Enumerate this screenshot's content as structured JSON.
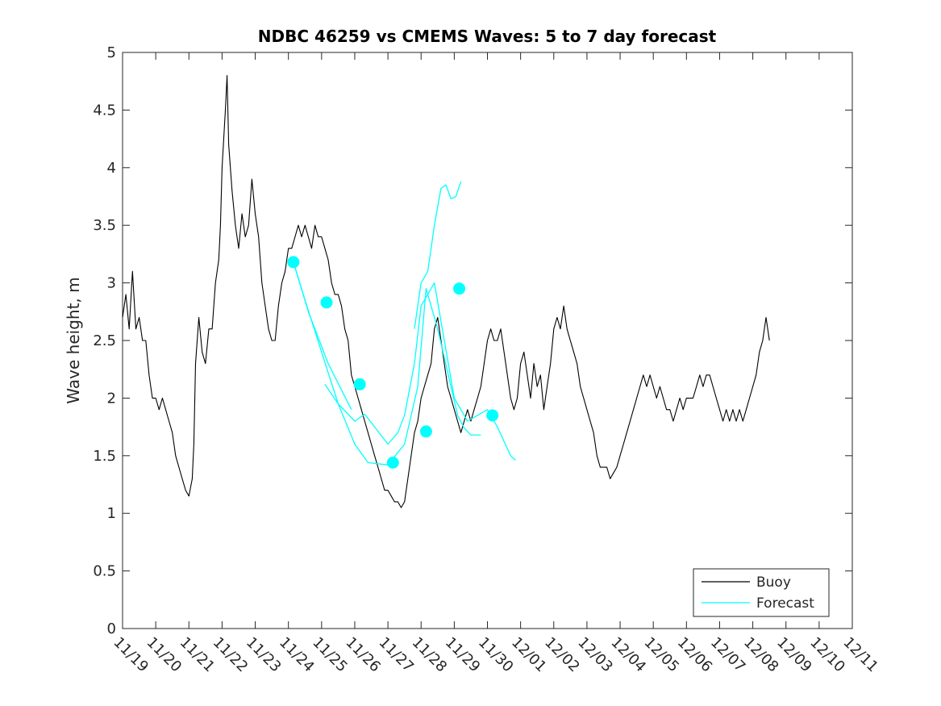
{
  "chart_data": {
    "type": "line",
    "title": "NDBC 46259 vs CMEMS Waves: 5 to 7 day forecast",
    "xlabel": "",
    "ylabel": "Wave height, m",
    "xlim": [
      "11/19",
      "12/11"
    ],
    "ylim": [
      0,
      5
    ],
    "x_tick_labels": [
      "11/19",
      "11/20",
      "11/21",
      "11/22",
      "11/23",
      "11/24",
      "11/25",
      "11/26",
      "11/27",
      "11/28",
      "11/29",
      "11/30",
      "12/01",
      "12/02",
      "12/03",
      "12/04",
      "12/05",
      "12/06",
      "12/07",
      "12/08",
      "12/09",
      "12/10",
      "12/11"
    ],
    "y_ticks": [
      0,
      0.5,
      1,
      1.5,
      2,
      2.5,
      3,
      3.5,
      4,
      4.5,
      5
    ],
    "y_tick_labels": [
      "0",
      "0.5",
      "1",
      "1.5",
      "2",
      "2.5",
      "3",
      "3.5",
      "4",
      "4.5",
      "5"
    ],
    "grid": false,
    "legend_position": "bottom-right",
    "legend": [
      "Buoy",
      "Forecast"
    ],
    "series": [
      {
        "name": "Buoy",
        "color": "#000000",
        "x_unit": "days after 11/19",
        "points": [
          [
            0.0,
            2.7
          ],
          [
            0.1,
            2.9
          ],
          [
            0.2,
            2.6
          ],
          [
            0.3,
            3.1
          ],
          [
            0.4,
            2.6
          ],
          [
            0.5,
            2.7
          ],
          [
            0.6,
            2.5
          ],
          [
            0.7,
            2.5
          ],
          [
            0.8,
            2.2
          ],
          [
            0.9,
            2.0
          ],
          [
            1.0,
            2.0
          ],
          [
            1.1,
            1.9
          ],
          [
            1.2,
            2.0
          ],
          [
            1.3,
            1.9
          ],
          [
            1.4,
            1.8
          ],
          [
            1.5,
            1.7
          ],
          [
            1.6,
            1.5
          ],
          [
            1.7,
            1.4
          ],
          [
            1.8,
            1.3
          ],
          [
            1.9,
            1.2
          ],
          [
            2.0,
            1.15
          ],
          [
            2.1,
            1.3
          ],
          [
            2.15,
            1.6
          ],
          [
            2.2,
            2.3
          ],
          [
            2.3,
            2.7
          ],
          [
            2.4,
            2.4
          ],
          [
            2.5,
            2.3
          ],
          [
            2.6,
            2.6
          ],
          [
            2.7,
            2.6
          ],
          [
            2.8,
            3.0
          ],
          [
            2.9,
            3.2
          ],
          [
            2.95,
            3.5
          ],
          [
            3.0,
            4.0
          ],
          [
            3.1,
            4.5
          ],
          [
            3.15,
            4.8
          ],
          [
            3.2,
            4.2
          ],
          [
            3.3,
            3.8
          ],
          [
            3.4,
            3.5
          ],
          [
            3.5,
            3.3
          ],
          [
            3.6,
            3.6
          ],
          [
            3.7,
            3.4
          ],
          [
            3.8,
            3.5
          ],
          [
            3.9,
            3.9
          ],
          [
            4.0,
            3.6
          ],
          [
            4.1,
            3.4
          ],
          [
            4.2,
            3.0
          ],
          [
            4.3,
            2.8
          ],
          [
            4.4,
            2.6
          ],
          [
            4.5,
            2.5
          ],
          [
            4.6,
            2.5
          ],
          [
            4.7,
            2.8
          ],
          [
            4.8,
            3.0
          ],
          [
            4.9,
            3.1
          ],
          [
            5.0,
            3.3
          ],
          [
            5.1,
            3.3
          ],
          [
            5.2,
            3.4
          ],
          [
            5.3,
            3.5
          ],
          [
            5.4,
            3.4
          ],
          [
            5.5,
            3.5
          ],
          [
            5.6,
            3.4
          ],
          [
            5.7,
            3.3
          ],
          [
            5.8,
            3.5
          ],
          [
            5.9,
            3.4
          ],
          [
            6.0,
            3.4
          ],
          [
            6.1,
            3.3
          ],
          [
            6.2,
            3.2
          ],
          [
            6.3,
            3.0
          ],
          [
            6.4,
            2.9
          ],
          [
            6.5,
            2.9
          ],
          [
            6.6,
            2.8
          ],
          [
            6.7,
            2.6
          ],
          [
            6.8,
            2.5
          ],
          [
            6.9,
            2.2
          ],
          [
            7.0,
            2.1
          ],
          [
            7.1,
            2.0
          ],
          [
            7.2,
            1.9
          ],
          [
            7.3,
            1.8
          ],
          [
            7.4,
            1.7
          ],
          [
            7.5,
            1.6
          ],
          [
            7.6,
            1.5
          ],
          [
            7.7,
            1.4
          ],
          [
            7.8,
            1.3
          ],
          [
            7.9,
            1.2
          ],
          [
            8.0,
            1.2
          ],
          [
            8.1,
            1.15
          ],
          [
            8.2,
            1.1
          ],
          [
            8.3,
            1.1
          ],
          [
            8.4,
            1.05
          ],
          [
            8.5,
            1.1
          ],
          [
            8.6,
            1.3
          ],
          [
            8.7,
            1.5
          ],
          [
            8.8,
            1.7
          ],
          [
            8.9,
            1.8
          ],
          [
            9.0,
            2.0
          ],
          [
            9.1,
            2.1
          ],
          [
            9.2,
            2.2
          ],
          [
            9.3,
            2.3
          ],
          [
            9.4,
            2.6
          ],
          [
            9.5,
            2.7
          ],
          [
            9.6,
            2.5
          ],
          [
            9.7,
            2.3
          ],
          [
            9.8,
            2.1
          ],
          [
            9.9,
            2.0
          ],
          [
            10.0,
            1.9
          ],
          [
            10.1,
            1.8
          ],
          [
            10.2,
            1.7
          ],
          [
            10.3,
            1.8
          ],
          [
            10.4,
            1.9
          ],
          [
            10.5,
            1.8
          ],
          [
            10.6,
            1.9
          ],
          [
            10.7,
            2.0
          ],
          [
            10.8,
            2.1
          ],
          [
            10.9,
            2.3
          ],
          [
            11.0,
            2.5
          ],
          [
            11.1,
            2.6
          ],
          [
            11.2,
            2.5
          ],
          [
            11.3,
            2.5
          ],
          [
            11.4,
            2.6
          ],
          [
            11.5,
            2.4
          ],
          [
            11.6,
            2.2
          ],
          [
            11.7,
            2.0
          ],
          [
            11.8,
            1.9
          ],
          [
            11.9,
            2.0
          ],
          [
            12.0,
            2.3
          ],
          [
            12.1,
            2.4
          ],
          [
            12.2,
            2.2
          ],
          [
            12.3,
            2.0
          ],
          [
            12.4,
            2.3
          ],
          [
            12.5,
            2.1
          ],
          [
            12.6,
            2.2
          ],
          [
            12.7,
            1.9
          ],
          [
            12.8,
            2.1
          ],
          [
            12.9,
            2.3
          ],
          [
            13.0,
            2.6
          ],
          [
            13.1,
            2.7
          ],
          [
            13.2,
            2.6
          ],
          [
            13.3,
            2.8
          ],
          [
            13.4,
            2.6
          ],
          [
            13.5,
            2.5
          ],
          [
            13.6,
            2.4
          ],
          [
            13.7,
            2.3
          ],
          [
            13.8,
            2.1
          ],
          [
            13.9,
            2.0
          ],
          [
            14.0,
            1.9
          ],
          [
            14.1,
            1.8
          ],
          [
            14.2,
            1.7
          ],
          [
            14.3,
            1.5
          ],
          [
            14.4,
            1.4
          ],
          [
            14.5,
            1.4
          ],
          [
            14.6,
            1.4
          ],
          [
            14.7,
            1.3
          ],
          [
            14.8,
            1.35
          ],
          [
            14.9,
            1.4
          ],
          [
            15.0,
            1.5
          ],
          [
            15.1,
            1.6
          ],
          [
            15.2,
            1.7
          ],
          [
            15.3,
            1.8
          ],
          [
            15.4,
            1.9
          ],
          [
            15.5,
            2.0
          ],
          [
            15.6,
            2.1
          ],
          [
            15.7,
            2.2
          ],
          [
            15.8,
            2.1
          ],
          [
            15.9,
            2.2
          ],
          [
            16.0,
            2.1
          ],
          [
            16.1,
            2.0
          ],
          [
            16.2,
            2.1
          ],
          [
            16.3,
            2.0
          ],
          [
            16.4,
            1.9
          ],
          [
            16.5,
            1.9
          ],
          [
            16.6,
            1.8
          ],
          [
            16.7,
            1.9
          ],
          [
            16.8,
            2.0
          ],
          [
            16.9,
            1.9
          ],
          [
            17.0,
            2.0
          ],
          [
            17.1,
            2.0
          ],
          [
            17.2,
            2.0
          ],
          [
            17.3,
            2.1
          ],
          [
            17.4,
            2.2
          ],
          [
            17.5,
            2.1
          ],
          [
            17.6,
            2.2
          ],
          [
            17.7,
            2.2
          ],
          [
            17.8,
            2.1
          ],
          [
            17.9,
            2.0
          ],
          [
            18.0,
            1.9
          ],
          [
            18.1,
            1.8
          ],
          [
            18.2,
            1.9
          ],
          [
            18.3,
            1.8
          ],
          [
            18.4,
            1.9
          ],
          [
            18.5,
            1.8
          ],
          [
            18.6,
            1.9
          ],
          [
            18.7,
            1.8
          ],
          [
            18.8,
            1.9
          ],
          [
            18.9,
            2.0
          ],
          [
            19.0,
            2.1
          ],
          [
            19.1,
            2.2
          ],
          [
            19.2,
            2.4
          ],
          [
            19.3,
            2.5
          ],
          [
            19.4,
            2.7
          ],
          [
            19.5,
            2.5
          ]
        ]
      },
      {
        "name": "Forecast",
        "color": "#00ffff",
        "x_unit": "days after 11/19",
        "segments": [
          [
            [
              5.15,
              3.18
            ],
            [
              5.5,
              2.85
            ],
            [
              6.0,
              2.4
            ],
            [
              6.5,
              1.95
            ],
            [
              7.0,
              1.6
            ],
            [
              7.4,
              1.44
            ],
            [
              8.0,
              1.42
            ],
            [
              8.5,
              1.6
            ],
            [
              8.9,
              2.1
            ],
            [
              9.15,
              2.95
            ],
            [
              9.5,
              2.6
            ],
            [
              10.1,
              1.85
            ],
            [
              10.3,
              1.74
            ],
            [
              10.5,
              1.68
            ],
            [
              10.8,
              1.68
            ]
          ],
          [
            [
              5.15,
              3.18
            ],
            [
              5.6,
              2.75
            ],
            [
              6.2,
              2.3
            ],
            [
              6.9,
              1.9
            ]
          ],
          [
            [
              6.1,
              2.12
            ],
            [
              6.5,
              1.95
            ],
            [
              7.0,
              1.8
            ],
            [
              7.3,
              1.86
            ],
            [
              7.6,
              1.75
            ],
            [
              8.0,
              1.6
            ],
            [
              8.3,
              1.7
            ],
            [
              8.5,
              1.85
            ],
            [
              8.8,
              2.3
            ],
            [
              9.0,
              2.8
            ],
            [
              9.4,
              3.0
            ],
            [
              9.7,
              2.5
            ],
            [
              10.0,
              2.0
            ],
            [
              10.4,
              1.8
            ],
            [
              10.7,
              1.85
            ],
            [
              11.0,
              1.9
            ],
            [
              11.3,
              1.75
            ],
            [
              11.7,
              1.5
            ],
            [
              11.85,
              1.46
            ]
          ],
          [
            [
              8.8,
              2.6
            ],
            [
              9.0,
              3.0
            ],
            [
              9.2,
              3.1
            ],
            [
              9.4,
              3.5
            ],
            [
              9.6,
              3.82
            ],
            [
              9.75,
              3.85
            ],
            [
              9.9,
              3.73
            ],
            [
              10.05,
              3.75
            ],
            [
              10.2,
              3.88
            ]
          ]
        ],
        "markers": [
          [
            5.15,
            3.18
          ],
          [
            6.15,
            2.83
          ],
          [
            7.15,
            2.12
          ],
          [
            8.15,
            1.44
          ],
          [
            9.15,
            1.71
          ],
          [
            10.15,
            2.95
          ],
          [
            11.15,
            1.85
          ]
        ]
      }
    ]
  }
}
